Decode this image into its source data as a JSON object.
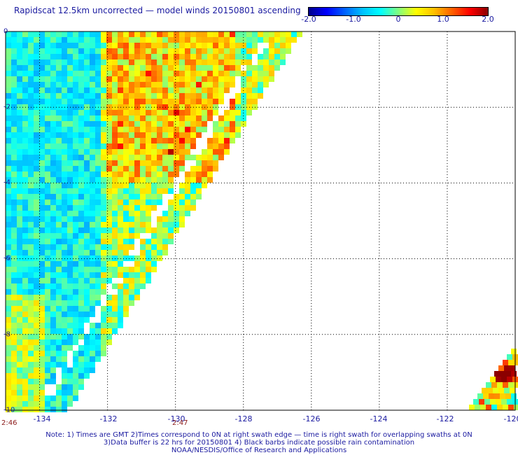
{
  "title": "Rapidscat 12.5km uncorrected — model winds 20150801 ascending",
  "colorbar": {
    "ticks": [
      "-2.0",
      "-1.0",
      "0",
      "1.0",
      "2.0"
    ],
    "tick_values": [
      -2.0,
      -1.0,
      0,
      1.0,
      2.0
    ]
  },
  "axes": {
    "x_ticks": [
      {
        "value": -134,
        "label": "-134"
      },
      {
        "value": -132,
        "label": "-132"
      },
      {
        "value": -130,
        "label": "-130"
      },
      {
        "value": -128,
        "label": "-128"
      },
      {
        "value": -126,
        "label": "-126"
      },
      {
        "value": -124,
        "label": "-124"
      },
      {
        "value": -122,
        "label": "-122"
      },
      {
        "value": -120,
        "label": "-120"
      }
    ],
    "y_ticks": [
      {
        "value": 0,
        "label": "0"
      },
      {
        "value": -2,
        "label": "-2"
      },
      {
        "value": -4,
        "label": "-4"
      },
      {
        "value": -6,
        "label": "-6"
      },
      {
        "value": -8,
        "label": "-8"
      },
      {
        "value": -10,
        "label": "-10"
      }
    ],
    "xlim": [
      -135,
      -120
    ],
    "ylim": [
      -10,
      0
    ]
  },
  "time_labels": [
    {
      "value": -135,
      "label": "2:46"
    },
    {
      "value": -130,
      "label": "2:47"
    }
  ],
  "notes": [
    "Note: 1) Times are GMT 2)Times correspond to 0N at right swath edge — time is right swath for overlapping swaths at 0N",
    "3)Data buffer is 22 hrs for 20150801 4) Black barbs indicate possible rain contamination",
    "NOAA/NESDIS/Office of Research and Applications"
  ],
  "colors": {
    "text": "#1a1aa0",
    "time": "#8b1a1a",
    "grid": "#000000"
  }
}
